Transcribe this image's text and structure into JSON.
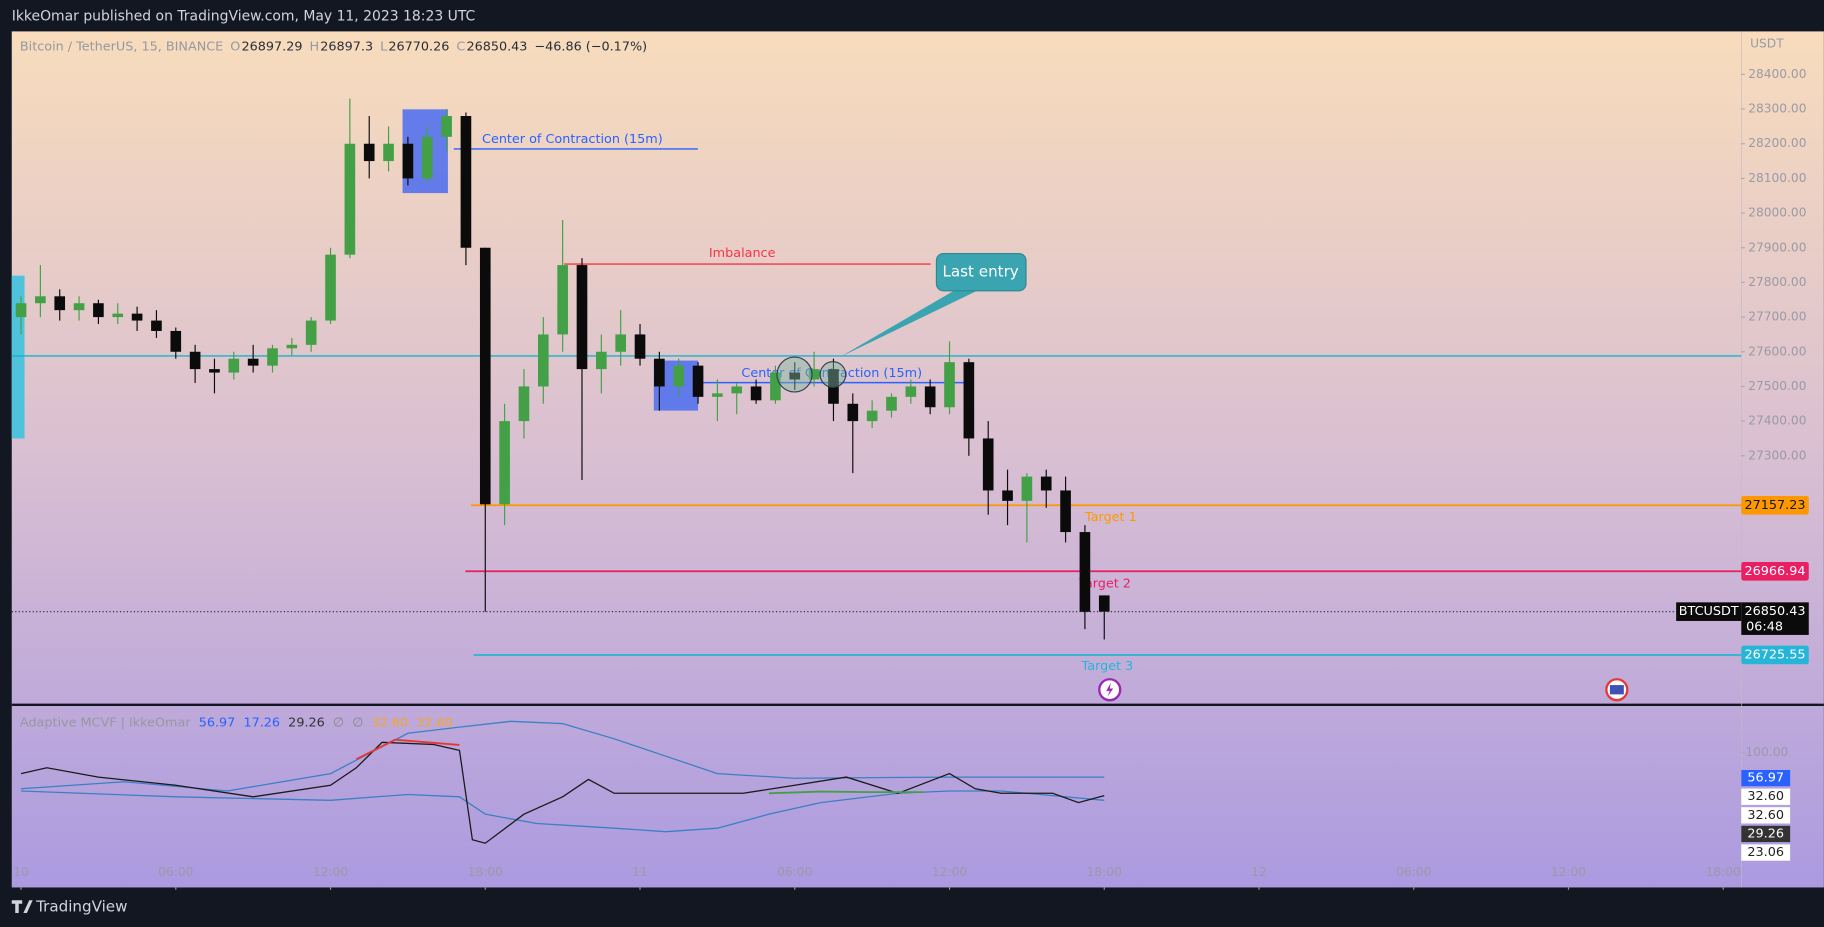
{
  "header": {
    "published": "IkkeOmar published on TradingView.com, May 11, 2023 18:23 UTC"
  },
  "footer": {
    "brand": "TradingView"
  },
  "chart_data": [
    {
      "type": "candlestick",
      "symbol": "Bitcoin / TetherUS, 15, BINANCE",
      "ohlc_labels": [
        "O",
        "H",
        "L",
        "C"
      ],
      "change": "−46.86 (−0.17%)",
      "currency": "USDT",
      "ticker": "BTCUSDT",
      "countdown": "06:48",
      "xlim": [
        -0.36,
        66.7
      ],
      "xticks": [
        {
          "value": 0,
          "label": "10"
        },
        {
          "value": 6,
          "label": "06:00"
        },
        {
          "value": 12,
          "label": "12:00"
        },
        {
          "value": 18,
          "label": "18:00"
        },
        {
          "value": 24,
          "label": "11"
        },
        {
          "value": 30,
          "label": "06:00"
        },
        {
          "value": 36,
          "label": "12:00"
        },
        {
          "value": 42,
          "label": "18:00"
        },
        {
          "value": 48,
          "label": "12"
        },
        {
          "value": 54,
          "label": "06:00"
        },
        {
          "value": 60,
          "label": "12:00"
        },
        {
          "value": 66,
          "label": "18:00"
        }
      ],
      "ylim": [
        26585,
        28524
      ],
      "yticks": [
        {
          "value": 28400,
          "label": "28400.00"
        },
        {
          "value": 28300,
          "label": "28300.00"
        },
        {
          "value": 28200,
          "label": "28200.00"
        },
        {
          "value": 28100,
          "label": "28100.00"
        },
        {
          "value": 28000,
          "label": "28000.00"
        },
        {
          "value": 27900,
          "label": "27900.00"
        },
        {
          "value": 27800,
          "label": "27800.00"
        },
        {
          "value": 27700,
          "label": "27700.00"
        },
        {
          "value": 27600,
          "label": "27600.00"
        },
        {
          "value": 27500,
          "label": "27500.00"
        },
        {
          "value": 27400,
          "label": "27400.00"
        },
        {
          "value": 27300,
          "label": "27300.00"
        }
      ],
      "up_color": "#43a047",
      "down_color": "#0b0b0b",
      "candles": [
        [
          0,
          27700,
          27760,
          27650,
          27740
        ],
        [
          0.75,
          27740,
          27850,
          27700,
          27760
        ],
        [
          1.5,
          27760,
          27780,
          27690,
          27720
        ],
        [
          2.25,
          27720,
          27760,
          27690,
          27740
        ],
        [
          3,
          27740,
          27750,
          27680,
          27700
        ],
        [
          3.75,
          27700,
          27740,
          27680,
          27710
        ],
        [
          4.5,
          27710,
          27730,
          27660,
          27690
        ],
        [
          5.25,
          27690,
          27720,
          27640,
          27660
        ],
        [
          6,
          27660,
          27670,
          27580,
          27600
        ],
        [
          6.75,
          27600,
          27620,
          27510,
          27550
        ],
        [
          7.5,
          27550,
          27580,
          27480,
          27540
        ],
        [
          8.25,
          27540,
          27600,
          27520,
          27580
        ],
        [
          9,
          27580,
          27620,
          27540,
          27560
        ],
        [
          9.75,
          27560,
          27620,
          27540,
          27610
        ],
        [
          10.5,
          27610,
          27640,
          27590,
          27620
        ],
        [
          11.25,
          27620,
          27700,
          27600,
          27690
        ],
        [
          12,
          27690,
          27900,
          27680,
          27880
        ],
        [
          12.75,
          27880,
          28330,
          27870,
          28200
        ],
        [
          13.5,
          28200,
          28280,
          28100,
          28150
        ],
        [
          14.25,
          28150,
          28250,
          28120,
          28200
        ],
        [
          15,
          28200,
          28220,
          28080,
          28100
        ],
        [
          15.75,
          28100,
          28250,
          28090,
          28220
        ],
        [
          16.5,
          28220,
          28300,
          28180,
          28280
        ],
        [
          17.25,
          28280,
          28290,
          27850,
          27900
        ],
        [
          18,
          27900,
          27900,
          26850,
          27160
        ],
        [
          18.75,
          27160,
          27450,
          27100,
          27400
        ],
        [
          19.5,
          27400,
          27550,
          27350,
          27500
        ],
        [
          20.25,
          27500,
          27700,
          27450,
          27650
        ],
        [
          21,
          27650,
          27980,
          27600,
          27850
        ],
        [
          21.75,
          27850,
          27870,
          27230,
          27550
        ],
        [
          22.5,
          27550,
          27650,
          27480,
          27600
        ],
        [
          23.25,
          27600,
          27720,
          27560,
          27650
        ],
        [
          24,
          27650,
          27680,
          27560,
          27580
        ],
        [
          24.75,
          27580,
          27600,
          27430,
          27500
        ],
        [
          25.5,
          27500,
          27580,
          27470,
          27560
        ],
        [
          26.25,
          27560,
          27570,
          27450,
          27470
        ],
        [
          27,
          27470,
          27520,
          27400,
          27480
        ],
        [
          27.75,
          27480,
          27510,
          27420,
          27500
        ],
        [
          28.5,
          27500,
          27520,
          27450,
          27460
        ],
        [
          29.25,
          27460,
          27560,
          27450,
          27540
        ],
        [
          30,
          27540,
          27570,
          27490,
          27520
        ],
        [
          30.75,
          27520,
          27600,
          27500,
          27550
        ],
        [
          31.5,
          27550,
          27580,
          27400,
          27450
        ],
        [
          32.25,
          27450,
          27480,
          27250,
          27400
        ],
        [
          33,
          27400,
          27460,
          27380,
          27430
        ],
        [
          33.75,
          27430,
          27480,
          27410,
          27470
        ],
        [
          34.5,
          27470,
          27520,
          27450,
          27500
        ],
        [
          35.25,
          27500,
          27520,
          27420,
          27440
        ],
        [
          36,
          27440,
          27630,
          27420,
          27570
        ],
        [
          36.75,
          27570,
          27580,
          27300,
          27350
        ],
        [
          37.5,
          27350,
          27400,
          27130,
          27200
        ],
        [
          38.25,
          27200,
          27260,
          27100,
          27170
        ],
        [
          39,
          27170,
          27250,
          27050,
          27240
        ],
        [
          39.75,
          27240,
          27260,
          27150,
          27200
        ],
        [
          40.5,
          27200,
          27240,
          27050,
          27080
        ],
        [
          41.25,
          27080,
          27100,
          26800,
          26850
        ],
        [
          42,
          26897.29,
          26897.3,
          26770.26,
          26850.43
        ]
      ],
      "levels": [
        {
          "label": "Center of Contraction (15m)",
          "value": 28185,
          "color": "#2962ff"
        },
        {
          "label": "Imbalance",
          "value": 27853,
          "color": "#f23645"
        },
        {
          "label": "Center of Contraction (15m)",
          "value": 27511,
          "color": "#2962ff"
        },
        {
          "value": 27588,
          "color": "#17b3c9"
        },
        {
          "label": "Target 1",
          "value": 27157.23,
          "color": "#ff9800"
        },
        {
          "label": "Target 2",
          "value": 26966.94,
          "color": "#e91e63"
        },
        {
          "label": "Target 3",
          "value": 26725.55,
          "color": "#26b5d6"
        }
      ],
      "callout": "Last entry"
    },
    {
      "type": "line",
      "title": "Adaptive MCVF | IkkeOmar",
      "header_values": [
        56.97,
        17.26,
        29.26,
        "∅",
        "∅",
        {
          "value": 32.6,
          "label": "32.60"
        },
        {
          "value": 32.6,
          "label": "32.60"
        }
      ],
      "header_colors": [
        "#2962ff",
        "#2962ff",
        "#333",
        "#888",
        "#888",
        "#f5a623",
        "#f5a623"
      ],
      "ylim": [
        -3,
        136
      ],
      "yticks": [
        {
          "value": 100,
          "label": "100.00"
        }
      ],
      "value_tags": [
        56.97,
        {
          "value": 32.6,
          "label": "32.60"
        },
        {
          "value": 32.6,
          "label": "32.60"
        },
        29.26,
        23.06
      ],
      "series": [
        {
          "color": "#3b7fc4",
          "x": [
            0,
            4,
            8,
            12,
            15,
            17,
            19,
            21,
            23,
            25,
            27,
            30,
            36,
            42
          ],
          "values": [
            72.2,
            77.6,
            70.5,
            83.9,
            115,
            119.7,
            124.2,
            122.4,
            110.7,
            97.3,
            83.9,
            80.3,
            81.2,
            81.2
          ]
        },
        {
          "color": "#3b7fc4",
          "x": [
            0,
            6,
            12,
            15,
            17,
            18,
            20,
            23,
            25,
            27,
            29,
            31,
            34,
            36,
            38,
            40,
            42
          ],
          "values": [
            70.5,
            66,
            63.3,
            67.8,
            66,
            52.6,
            45.4,
            41.8,
            39.1,
            41.8,
            52.6,
            61.5,
            68.7,
            70.5,
            70.5,
            66.9,
            63.3
          ]
        },
        {
          "color": "#1a1a1a",
          "x": [
            0,
            1,
            3,
            6,
            9,
            12,
            13,
            14,
            16,
            17,
            17.5,
            18,
            19.5,
            21,
            22,
            23,
            28,
            30,
            32,
            34,
            36,
            37,
            38,
            40,
            41,
            42
          ],
          "values": [
            83.9,
            88.4,
            81.2,
            74.9,
            66,
            74.9,
            88.4,
            108,
            106.3,
            101.8,
            32.9,
            30.2,
            52.6,
            66,
            79.4,
            68.7,
            68.7,
            74.9,
            81.2,
            68.7,
            83.9,
            72.2,
            68.7,
            68.7,
            61.5,
            66.9
          ]
        },
        {
          "color": "#e53935",
          "x": [
            13,
            14.5,
            17
          ],
          "values": [
            95,
            110,
            106
          ]
        },
        {
          "color": "#43a047",
          "x": [
            29,
            31,
            33,
            35
          ],
          "values": [
            68.7,
            70,
            69.6,
            69.6
          ]
        }
      ]
    }
  ]
}
